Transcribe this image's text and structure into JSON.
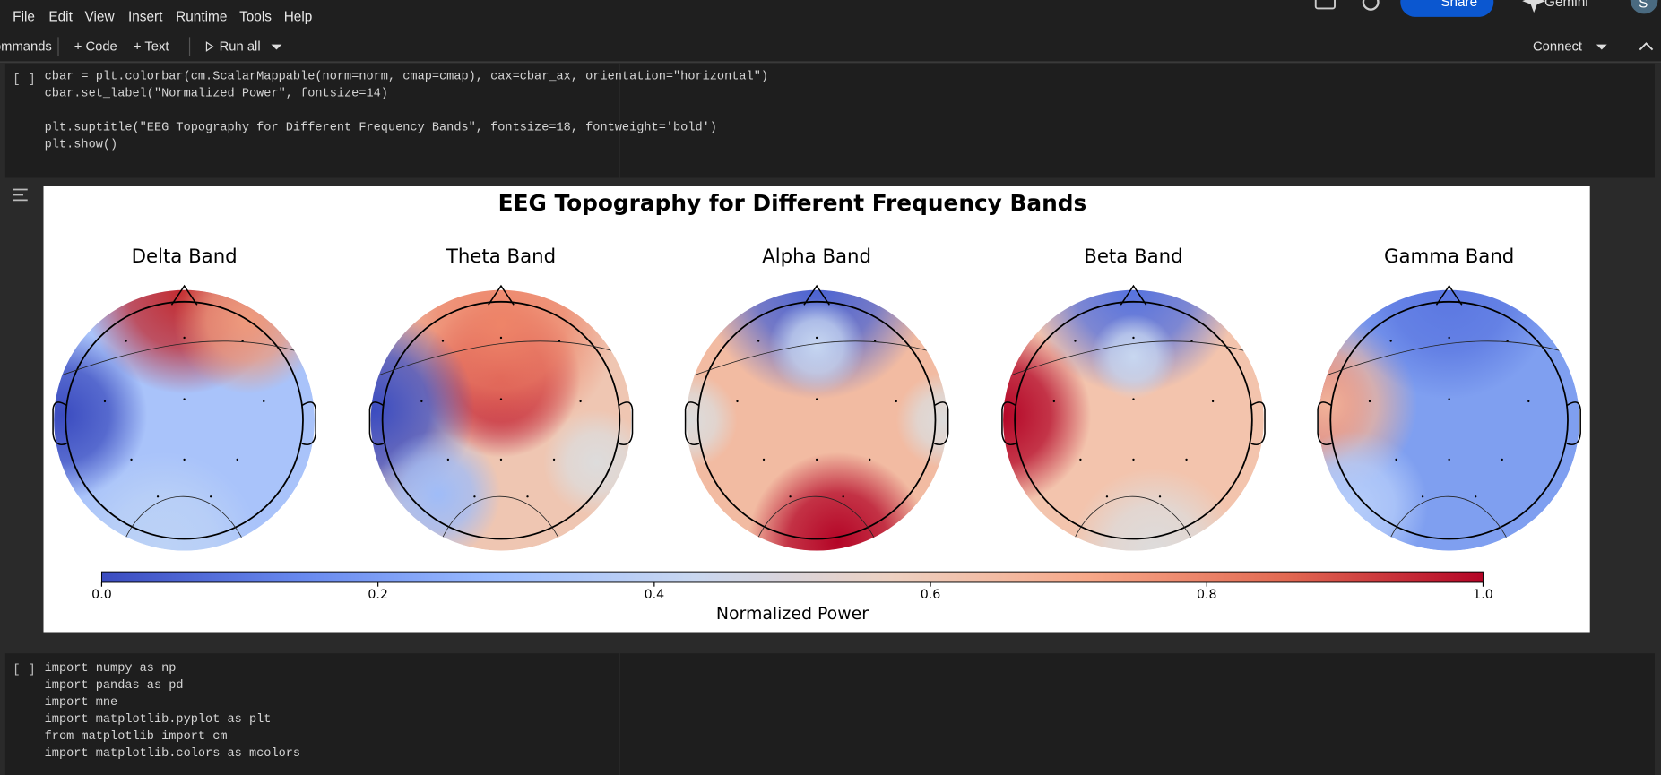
{
  "menu": [
    "File",
    "Edit",
    "View",
    "Insert",
    "Runtime",
    "Tools",
    "Help"
  ],
  "header": {
    "share": "Share",
    "gemini": "Gemini",
    "avatar": "S"
  },
  "toolbar": {
    "commands": "Commands",
    "code": "+ Code",
    "text": "+ Text",
    "run_all": "Run all",
    "connect": "Connect"
  },
  "cells": [
    {
      "prompt": "[ ]",
      "source": "cbar = plt.colorbar(cm.ScalarMappable(norm=norm, cmap=cmap), cax=cbar_ax, orientation=\"horizontal\")\ncbar.set_label(\"Normalized Power\", fontsize=14)\n\nplt.suptitle(\"EEG Topography for Different Frequency Bands\", fontsize=18, fontweight='bold')\nplt.show()"
    },
    {
      "prompt": "[ ]",
      "source": "import numpy as np\nimport pandas as pd\nimport mne\nimport matplotlib.pyplot as plt\nfrom matplotlib import cm\nimport matplotlib.colors as mcolors"
    }
  ],
  "figure": {
    "title": "EEG Topography for Different Frequency Bands",
    "subplots": [
      "Delta Band",
      "Theta Band",
      "Alpha Band",
      "Beta Band",
      "Gamma Band"
    ],
    "colorbar": {
      "label": "Normalized Power",
      "lim": [
        0,
        1
      ],
      "ticks": [
        {
          "value": 0,
          "label": "0.0"
        },
        0.2,
        0.4,
        0.6,
        0.8,
        {
          "value": 1,
          "label": "1.0"
        }
      ]
    }
  }
}
